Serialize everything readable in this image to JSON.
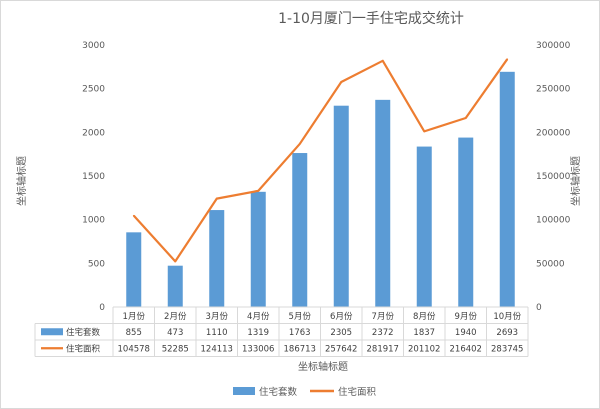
{
  "chart_data": {
    "type": "bar",
    "title": "1-10月厦门一手住宅成交统计",
    "categories": [
      "1月份",
      "2月份",
      "3月份",
      "4月份",
      "5月份",
      "6月份",
      "7月份",
      "8月份",
      "9月份",
      "10月份"
    ],
    "series": [
      {
        "name": "住宅套数",
        "type": "bar",
        "axis": "left",
        "color": "#5b9bd5",
        "values": [
          855,
          473,
          1110,
          1319,
          1763,
          2305,
          2372,
          1837,
          1940,
          2693
        ]
      },
      {
        "name": "住宅面积",
        "type": "line",
        "axis": "right",
        "color": "#ed7d31",
        "values": [
          104578,
          52285,
          124113,
          133006,
          186713,
          257642,
          281917,
          201102,
          216402,
          283745
        ]
      }
    ],
    "y_left": {
      "label": "坐标轴标题",
      "lim": [
        0,
        3000
      ],
      "ticks": [
        0,
        500,
        1000,
        1500,
        2000,
        2500,
        3000
      ]
    },
    "y_right": {
      "label": "坐标轴标题",
      "lim": [
        0,
        300000
      ],
      "ticks": [
        0,
        50000,
        100000,
        150000,
        200000,
        250000,
        300000
      ]
    },
    "xlabel": "坐标轴标题",
    "legend_position": "bottom",
    "data_table": true,
    "grid": false
  }
}
